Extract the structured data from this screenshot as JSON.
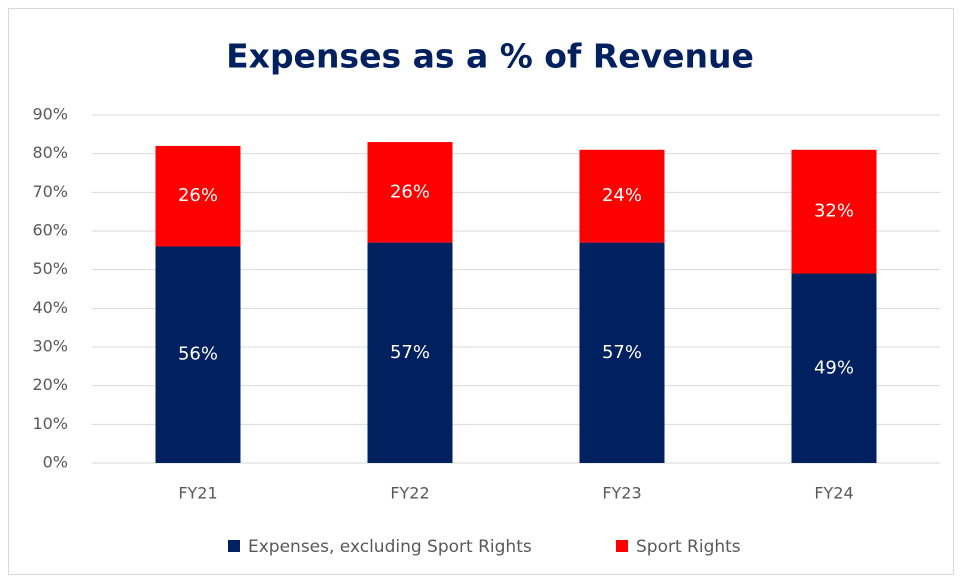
{
  "chart_data": {
    "type": "stacked_bar",
    "title": "Expenses as a % of Revenue",
    "categories": [
      "FY21",
      "FY22",
      "FY23",
      "FY24"
    ],
    "series": [
      {
        "name": "Expenses, excluding Sport Rights",
        "color": "#002060",
        "values": [
          56,
          57,
          57,
          49
        ],
        "value_labels": [
          "56%",
          "57%",
          "57%",
          "49%"
        ]
      },
      {
        "name": "Sport Rights",
        "color": "#ff0000",
        "values": [
          26,
          26,
          24,
          32
        ],
        "value_labels": [
          "26%",
          "26%",
          "24%",
          "32%"
        ]
      }
    ],
    "ylim": [
      0,
      90
    ],
    "yticks": [
      {
        "value": 0,
        "label": "0%"
      },
      {
        "value": 10,
        "label": "10%"
      },
      {
        "value": 20,
        "label": "20%"
      },
      {
        "value": 30,
        "label": "30%"
      },
      {
        "value": 40,
        "label": "40%"
      },
      {
        "value": 50,
        "label": "50%"
      },
      {
        "value": 60,
        "label": "60%"
      },
      {
        "value": 70,
        "label": "70%"
      },
      {
        "value": 80,
        "label": "80%"
      },
      {
        "value": 90,
        "label": "90%"
      }
    ],
    "grid": true,
    "legend": "bottom"
  }
}
